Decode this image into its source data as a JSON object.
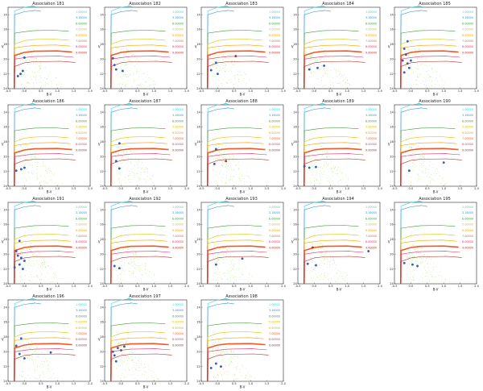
{
  "figure": {
    "panel_titles": [
      "Association 181",
      "Association 182",
      "Association 183",
      "Association 184",
      "Association 185",
      "Association 186",
      "Association 187",
      "Association 188",
      "Association 189",
      "Association 190",
      "Association 191",
      "Association 192",
      "Association 193",
      "Association 194",
      "Association 195",
      "Association 196",
      "Association 197",
      "Association 198"
    ],
    "xlabel": "B-V",
    "ylabel": "V",
    "x_ticks": [
      "-0.5",
      "0.0",
      "0.5",
      "1.0",
      "1.5",
      "2.0"
    ],
    "y_ticks": [
      "14",
      "16",
      "18",
      "20",
      "22",
      "24"
    ],
    "legend": [
      {
        "label": "1.00000",
        "color": "#33d6e6"
      },
      {
        "label": "3.16000",
        "color": "#3a8fd8"
      },
      {
        "label": "6.00000",
        "color": "#3b9a3b"
      },
      {
        "label": "5.00000",
        "color": "#d8c400"
      },
      {
        "label": "6.50000",
        "color": "#f0a000"
      },
      {
        "label": "7.00000",
        "color": "#f05a28"
      },
      {
        "label": "8.00000",
        "color": "#e0306a"
      },
      {
        "label": "9.00000",
        "color": "#b3241c"
      }
    ]
  },
  "chart_data": {
    "type": "scatter",
    "layout": "grid 5 columns x 4 rows, 18 panels",
    "xlabel": "B-V",
    "ylabel": "V",
    "xlim": [
      -0.5,
      2.0
    ],
    "ylim": [
      24,
      13
    ],
    "y_inverted": true,
    "background_field_color": "#9ee05a",
    "association_marker_color": "#2b63d8",
    "highlight_marker_color": "#e0202a",
    "isochrones": [
      {
        "label": "1.00000",
        "color": "#33d6e6"
      },
      {
        "label": "3.16000",
        "color": "#3a8fd8"
      },
      {
        "label": "6.00000",
        "color": "#3b9a3b"
      },
      {
        "label": "5.00000",
        "color": "#d8c400"
      },
      {
        "label": "6.50000",
        "color": "#f0a000"
      },
      {
        "label": "7.00000",
        "color": "#f05a28"
      },
      {
        "label": "8.00000",
        "color": "#e0306a"
      },
      {
        "label": "9.00000",
        "color": "#b3241c"
      }
    ],
    "panels": [
      {
        "title": "Association 181",
        "stars": [
          {
            "x": -0.05,
            "y": 21.6
          },
          {
            "x": -0.12,
            "y": 22.0
          },
          {
            "x": -0.2,
            "y": 22.3
          },
          {
            "x": 0.0,
            "y": 19.8
          }
        ]
      },
      {
        "title": "Association 182",
        "stars": [
          {
            "x": -0.25,
            "y": 19.9
          },
          {
            "x": -0.2,
            "y": 20.8
          },
          {
            "x": -0.15,
            "y": 21.4
          },
          {
            "x": 0.05,
            "y": 21.6
          }
        ]
      },
      {
        "title": "Association 183",
        "stars": [
          {
            "x": -0.05,
            "y": 20.5
          },
          {
            "x": -0.2,
            "y": 21.5
          },
          {
            "x": 0.0,
            "y": 22.0
          },
          {
            "x": 0.55,
            "y": 19.6,
            "highlight": true
          }
        ]
      },
      {
        "title": "Association 184",
        "stars": [
          {
            "x": -0.15,
            "y": 21.4
          },
          {
            "x": 0.1,
            "y": 21.2
          },
          {
            "x": 0.3,
            "y": 20.9
          }
        ]
      },
      {
        "title": "Association 185",
        "stars": [
          {
            "x": -0.1,
            "y": 17.6
          },
          {
            "x": -0.2,
            "y": 18.6
          },
          {
            "x": -0.15,
            "y": 19.4
          },
          {
            "x": -0.25,
            "y": 20.2
          },
          {
            "x": -0.1,
            "y": 20.6
          },
          {
            "x": 0.0,
            "y": 20.2
          },
          {
            "x": -0.05,
            "y": 21.2
          },
          {
            "x": -0.2,
            "y": 21.8
          }
        ]
      },
      {
        "title": "Association 186",
        "stars": [
          {
            "x": -0.25,
            "y": 21.9
          },
          {
            "x": -0.1,
            "y": 21.7
          },
          {
            "x": 0.0,
            "y": 21.5
          }
        ]
      },
      {
        "title": "Association 187",
        "stars": [
          {
            "x": -0.05,
            "y": 18.2
          },
          {
            "x": -0.15,
            "y": 20.6
          },
          {
            "x": -0.05,
            "y": 21.6
          }
        ]
      },
      {
        "title": "Association 188",
        "stars": [
          {
            "x": -0.05,
            "y": 19.0
          },
          {
            "x": -0.1,
            "y": 21.0
          },
          {
            "x": 0.25,
            "y": 20.6,
            "highlight": true
          }
        ]
      },
      {
        "title": "Association 189",
        "stars": [
          {
            "x": -0.3,
            "y": 21.3
          },
          {
            "x": -0.15,
            "y": 21.5
          },
          {
            "x": 0.05,
            "y": 21.4
          }
        ]
      },
      {
        "title": "Association 190",
        "stars": [
          {
            "x": -0.05,
            "y": 21.9
          },
          {
            "x": 1.0,
            "y": 20.8
          }
        ]
      },
      {
        "title": "Association 191",
        "stars": [
          {
            "x": -0.15,
            "y": 18.2
          },
          {
            "x": -0.25,
            "y": 19.6
          },
          {
            "x": -0.2,
            "y": 20.2
          },
          {
            "x": -0.1,
            "y": 20.5
          },
          {
            "x": 0.0,
            "y": 20.9
          },
          {
            "x": -0.15,
            "y": 21.4
          },
          {
            "x": -0.3,
            "y": 21.8
          },
          {
            "x": -0.05,
            "y": 22.0
          }
        ]
      },
      {
        "title": "Association 192",
        "stars": [
          {
            "x": -0.2,
            "y": 21.6
          },
          {
            "x": -0.05,
            "y": 21.9
          }
        ]
      },
      {
        "title": "Association 193",
        "stars": [
          {
            "x": -0.05,
            "y": 21.4
          },
          {
            "x": 0.75,
            "y": 20.6
          }
        ]
      },
      {
        "title": "Association 194",
        "stars": [
          {
            "x": -0.05,
            "y": 19.1,
            "highlight": true
          },
          {
            "x": 1.65,
            "y": 19.6
          },
          {
            "x": -0.2,
            "y": 21.3
          },
          {
            "x": 0.05,
            "y": 21.5
          }
        ]
      },
      {
        "title": "Association 195",
        "stars": [
          {
            "x": -0.2,
            "y": 21.2
          },
          {
            "x": 0.05,
            "y": 21.4
          },
          {
            "x": 0.2,
            "y": 21.6
          }
        ]
      },
      {
        "title": "Association 196",
        "stars": [
          {
            "x": -0.25,
            "y": 19.2
          },
          {
            "x": -0.1,
            "y": 18.2
          },
          {
            "x": -0.15,
            "y": 20.3
          },
          {
            "x": 0.0,
            "y": 20.9
          },
          {
            "x": 0.8,
            "y": 20.1
          }
        ]
      },
      {
        "title": "Association 197",
        "stars": [
          {
            "x": -0.25,
            "y": 20.0
          },
          {
            "x": -0.1,
            "y": 19.5
          },
          {
            "x": 0.0,
            "y": 19.8
          },
          {
            "x": 0.1,
            "y": 19.3
          },
          {
            "x": -0.2,
            "y": 20.5
          },
          {
            "x": -0.15,
            "y": 21.3
          }
        ]
      },
      {
        "title": "Association 198",
        "stars": [
          {
            "x": -0.05,
            "y": 21.6
          },
          {
            "x": -0.2,
            "y": 22.2
          },
          {
            "x": 0.1,
            "y": 22.0
          }
        ]
      }
    ]
  }
}
